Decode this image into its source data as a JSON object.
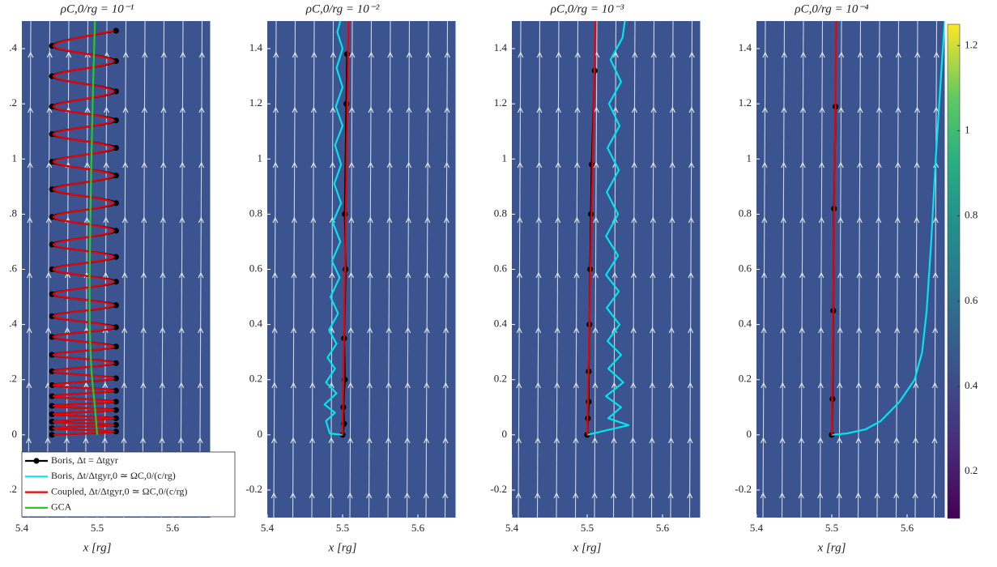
{
  "chart_data": [
    {
      "type": "line",
      "title": "ρC,0/rg = 10⁻¹",
      "xlabel": "x [rg]",
      "background": "#3b5490",
      "xlim": [
        5.4,
        5.65
      ],
      "xticks": [
        5.4,
        5.5,
        5.6
      ],
      "ylim": [
        -0.3,
        1.5
      ],
      "yticks": [
        {
          "value": -0.2,
          "label": ".2"
        },
        0,
        {
          "value": 0.2,
          "label": ".2"
        },
        {
          "value": 0.4,
          "label": ".4"
        },
        {
          "value": 0.6,
          "label": ".6"
        },
        {
          "value": 0.8,
          "label": ".8"
        },
        1,
        {
          "value": 1.2,
          "label": ".2"
        },
        {
          "value": 1.4,
          "label": ".4"
        }
      ],
      "legend": "lower left",
      "series": [
        {
          "name": "Boris, Δt = Δtgyr",
          "color": "#000000",
          "markers": true,
          "smooth": true,
          "x": [
            5.44,
            5.525,
            5.44,
            5.525,
            5.44,
            5.525,
            5.44,
            5.525,
            5.44,
            5.525,
            5.44,
            5.525,
            5.44,
            5.525,
            5.44,
            5.525,
            5.44,
            5.525,
            5.44,
            5.525,
            5.44,
            5.525,
            5.44,
            5.525,
            5.44,
            5.525,
            5.44,
            5.525,
            5.44,
            5.525,
            5.44,
            5.525,
            5.44,
            5.525,
            5.44,
            5.525,
            5.44,
            5.525,
            5.44,
            5.525,
            5.44,
            5.525
          ],
          "y": [
            0,
            0.012,
            0.024,
            0.036,
            0.048,
            0.06,
            0.075,
            0.09,
            0.105,
            0.12,
            0.14,
            0.16,
            0.18,
            0.205,
            0.23,
            0.26,
            0.29,
            0.32,
            0.355,
            0.39,
            0.43,
            0.47,
            0.51,
            0.555,
            0.6,
            0.645,
            0.69,
            0.74,
            0.79,
            0.84,
            0.89,
            0.94,
            0.99,
            1.04,
            1.09,
            1.14,
            1.19,
            1.245,
            1.3,
            1.355,
            1.41,
            1.465
          ]
        },
        {
          "name": "Boris, Δt/Δtgyr,0 ≃ ΩC,0/(c/rg)",
          "color": "#00e5ee",
          "x": [],
          "y": []
        },
        {
          "name": "Coupled, Δt/Δtgyr,0 ≃ ΩC,0/(c/rg)",
          "color": "#ee0000",
          "smooth": true,
          "x": [
            5.442,
            5.522,
            5.442,
            5.522,
            5.442,
            5.522,
            5.442,
            5.522,
            5.442,
            5.522,
            5.442,
            5.522,
            5.442,
            5.522,
            5.442,
            5.522,
            5.442,
            5.522,
            5.442,
            5.522,
            5.442,
            5.522,
            5.442,
            5.522,
            5.442,
            5.522,
            5.442,
            5.522,
            5.442,
            5.522,
            5.442,
            5.522,
            5.442,
            5.522,
            5.442,
            5.522,
            5.442,
            5.522,
            5.442,
            5.522,
            5.442,
            5.522
          ],
          "y": [
            0,
            0.012,
            0.024,
            0.036,
            0.048,
            0.06,
            0.075,
            0.09,
            0.105,
            0.12,
            0.14,
            0.16,
            0.18,
            0.205,
            0.23,
            0.26,
            0.29,
            0.32,
            0.355,
            0.39,
            0.43,
            0.47,
            0.51,
            0.555,
            0.6,
            0.645,
            0.69,
            0.74,
            0.79,
            0.84,
            0.89,
            0.94,
            0.99,
            1.04,
            1.09,
            1.14,
            1.19,
            1.245,
            1.3,
            1.355,
            1.41,
            1.465
          ]
        },
        {
          "name": "GCA",
          "color": "#22cc22",
          "smooth": true,
          "x": [
            5.5,
            5.497,
            5.492,
            5.49,
            5.491,
            5.494,
            5.497
          ],
          "y": [
            0,
            0.1,
            0.25,
            0.45,
            0.8,
            1.2,
            1.5
          ]
        }
      ]
    },
    {
      "type": "line",
      "title": "ρC,0/rg = 10⁻²",
      "xlabel": "x [rg]",
      "background": "#3b5490",
      "xlim": [
        5.4,
        5.65
      ],
      "xticks": [
        5.4,
        5.5,
        5.6
      ],
      "ylim": [
        -0.3,
        1.5
      ],
      "yticks": [
        -0.2,
        0,
        0.2,
        0.4,
        0.6,
        0.8,
        1,
        1.2,
        1.4
      ],
      "series": [
        {
          "color": "#000000",
          "markers": true,
          "x": [
            5.5,
            5.502,
            5.501,
            5.503,
            5.502,
            5.504,
            5.503,
            5.505,
            5.506
          ],
          "y": [
            0,
            0.04,
            0.1,
            0.2,
            0.35,
            0.6,
            0.8,
            1.2,
            1.38
          ]
        },
        {
          "color": "#00e5ee",
          "x": [
            5.5,
            5.483,
            5.478,
            5.49,
            5.476,
            5.492,
            5.478,
            5.49,
            5.48,
            5.492,
            5.482,
            5.494,
            5.484,
            5.496,
            5.486,
            5.497,
            5.487,
            5.498,
            5.489,
            5.498,
            5.49,
            5.5,
            5.491,
            5.5,
            5.492,
            5.5,
            5.493,
            5.497
          ],
          "y": [
            0,
            0.005,
            0.05,
            0.08,
            0.11,
            0.15,
            0.19,
            0.24,
            0.28,
            0.33,
            0.38,
            0.44,
            0.5,
            0.57,
            0.63,
            0.7,
            0.77,
            0.84,
            0.91,
            0.98,
            1.05,
            1.12,
            1.19,
            1.26,
            1.33,
            1.4,
            1.46,
            1.5
          ]
        },
        {
          "color": "#ee0000",
          "x": [
            5.5,
            5.508
          ],
          "y": [
            0,
            1.5
          ]
        }
      ]
    },
    {
      "type": "line",
      "title": "ρC,0/rg = 10⁻³",
      "xlabel": "x [rg]",
      "background": "#3b5490",
      "xlim": [
        5.4,
        5.65
      ],
      "xticks": [
        5.4,
        5.5,
        5.6
      ],
      "ylim": [
        -0.3,
        1.5
      ],
      "yticks": [
        -0.2,
        0,
        0.2,
        0.4,
        0.6,
        0.8,
        1,
        1.2,
        1.4
      ],
      "series": [
        {
          "color": "#000000",
          "markers": true,
          "x": [
            5.5,
            5.501,
            5.502,
            5.502,
            5.503,
            5.504,
            5.505,
            5.506,
            5.51
          ],
          "y": [
            0,
            0.06,
            0.12,
            0.23,
            0.4,
            0.6,
            0.8,
            0.98,
            1.32
          ]
        },
        {
          "color": "#00e5ee",
          "x": [
            5.5,
            5.555,
            5.528,
            5.545,
            5.525,
            5.548,
            5.528,
            5.545,
            5.527,
            5.543,
            5.526,
            5.542,
            5.525,
            5.541,
            5.525,
            5.541,
            5.526,
            5.542,
            5.527,
            5.543,
            5.529,
            5.545,
            5.531,
            5.547,
            5.55
          ],
          "y": [
            0,
            0.035,
            0.06,
            0.1,
            0.14,
            0.19,
            0.24,
            0.29,
            0.34,
            0.4,
            0.46,
            0.52,
            0.58,
            0.65,
            0.72,
            0.8,
            0.88,
            0.96,
            1.04,
            1.12,
            1.2,
            1.28,
            1.36,
            1.44,
            1.5
          ]
        },
        {
          "color": "#ee0000",
          "x": [
            5.5,
            5.511
          ],
          "y": [
            0,
            1.5
          ]
        }
      ]
    },
    {
      "type": "line",
      "title": "ρC,0/rg = 10⁻⁴",
      "xlabel": "x [rg]",
      "background": "#3b5490",
      "xlim": [
        5.4,
        5.65
      ],
      "xticks": [
        5.4,
        5.5,
        5.6
      ],
      "ylim": [
        -0.3,
        1.5
      ],
      "yticks": [
        -0.2,
        0,
        0.2,
        0.4,
        0.6,
        0.8,
        1,
        1.2,
        1.4
      ],
      "colorbar": {
        "clim": [
          0.09,
          1.25
        ],
        "ticks": [
          0.2,
          0.4,
          0.6,
          0.8,
          1,
          1.2
        ]
      },
      "series": [
        {
          "color": "#000000",
          "markers": true,
          "x": [
            5.5,
            5.501,
            5.502,
            5.503,
            5.505
          ],
          "y": [
            0,
            0.13,
            0.45,
            0.82,
            1.19
          ]
        },
        {
          "color": "#00e5ee",
          "x": [
            5.5,
            5.52,
            5.545,
            5.565,
            5.59,
            5.61,
            5.62,
            5.626,
            5.632,
            5.638,
            5.645,
            5.65
          ],
          "y": [
            0,
            0.005,
            0.02,
            0.05,
            0.12,
            0.2,
            0.3,
            0.45,
            0.7,
            1.0,
            1.3,
            1.5
          ]
        },
        {
          "color": "#ee0000",
          "x": [
            5.5,
            5.506
          ],
          "y": [
            0,
            1.5
          ]
        }
      ]
    }
  ]
}
